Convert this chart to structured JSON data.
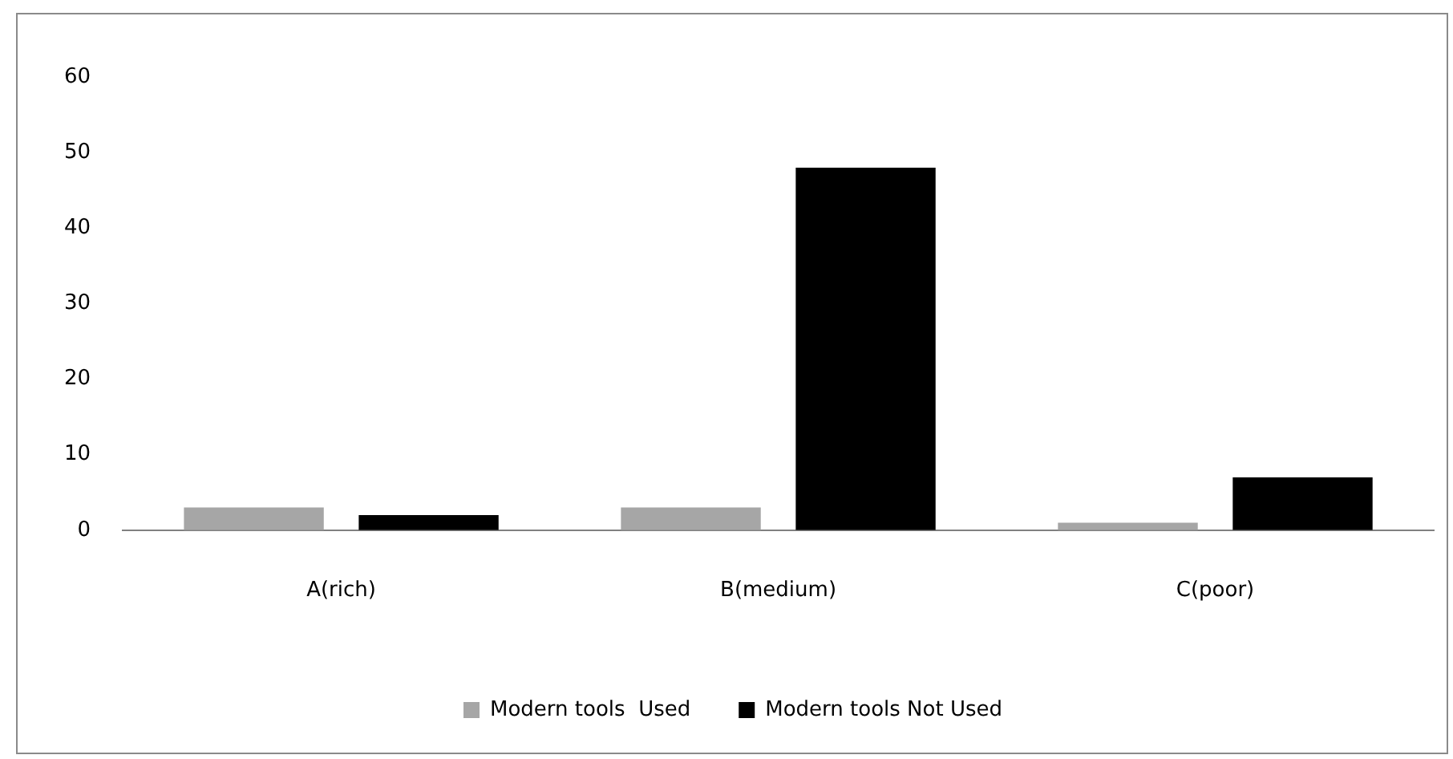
{
  "chart_data": {
    "type": "bar",
    "categories": [
      "A(rich)",
      "B(medium)",
      "C(poor)"
    ],
    "series": [
      {
        "name": "Modern tools  Used",
        "color": "#a6a6a6",
        "values": [
          3,
          3,
          1
        ]
      },
      {
        "name": "Modern tools Not Used",
        "color": "#000000",
        "values": [
          2,
          48,
          7
        ]
      }
    ],
    "ylim": [
      0,
      60
    ],
    "yticks": [
      0,
      10,
      20,
      30,
      40,
      50,
      60
    ],
    "grid": false,
    "legend": "bottom"
  }
}
